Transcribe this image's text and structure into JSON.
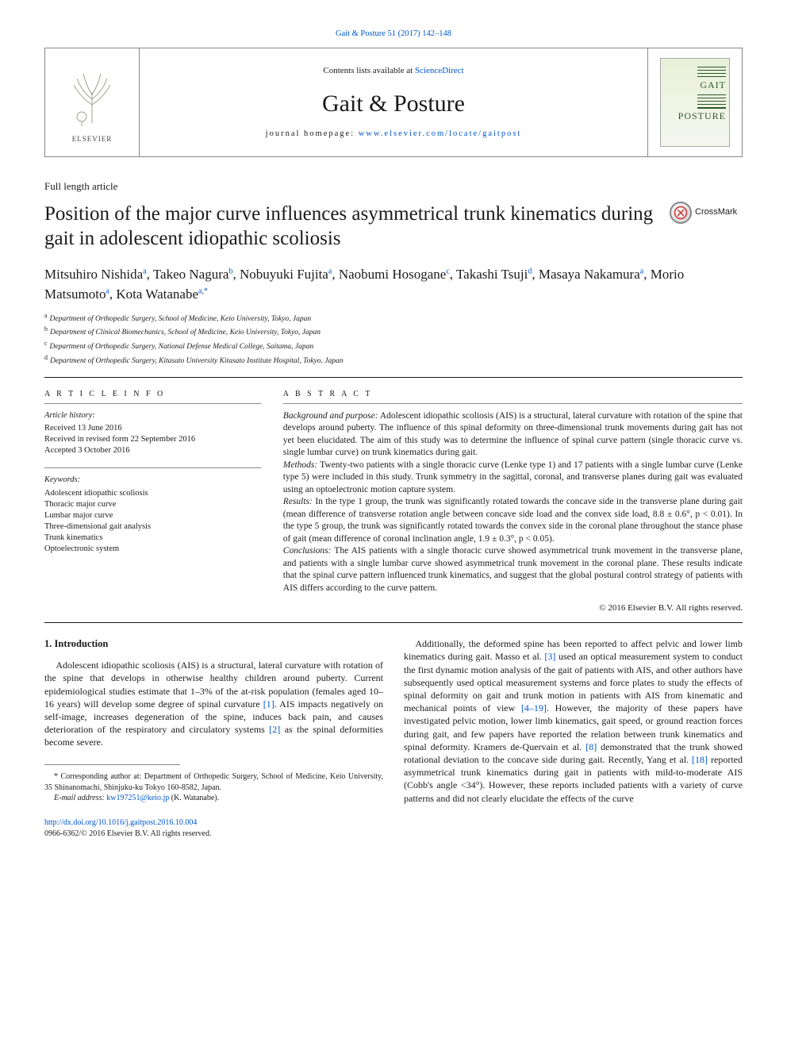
{
  "top_citation_prefix": "",
  "top_citation": "Gait & Posture 51 (2017) 142–148",
  "masthead": {
    "contents_prefix": "Contents lists available at ",
    "contents_link": "ScienceDirect",
    "journal": "Gait & Posture",
    "homepage_prefix": "journal homepage: ",
    "homepage_link": "www.elsevier.com/locate/gaitpost",
    "publisher_label": "ELSEVIER",
    "cover_word_top": "GAIT",
    "cover_word_bot": "POSTURE"
  },
  "article_type": "Full length article",
  "title": "Position of the major curve influences asymmetrical trunk kinematics during gait in adolescent idiopathic scoliosis",
  "crossmark_label": "CrossMark",
  "authors_html": [
    {
      "name": "Mitsuhiro Nishida",
      "sup": "a"
    },
    {
      "name": "Takeo Nagura",
      "sup": "b"
    },
    {
      "name": "Nobuyuki Fujita",
      "sup": "a"
    },
    {
      "name": "Naobumi Hosogane",
      "sup": "c"
    },
    {
      "name": "Takashi Tsuji",
      "sup": "d"
    },
    {
      "name": "Masaya Nakamura",
      "sup": "a"
    },
    {
      "name": "Morio Matsumoto",
      "sup": "a"
    },
    {
      "name": "Kota Watanabe",
      "sup": "a,*"
    }
  ],
  "affiliations": [
    {
      "key": "a",
      "text": "Department of Orthopedic Surgery, School of Medicine, Keio University, Tokyo, Japan"
    },
    {
      "key": "b",
      "text": "Department of Clinical Biomechanics, School of Medicine, Keio University, Tokyo, Japan"
    },
    {
      "key": "c",
      "text": "Department of Orthopedic Surgery, National Defense Medical College, Saitama, Japan"
    },
    {
      "key": "d",
      "text": "Department of Orthopedic Surgery, Kitasato University Kitasato Institute Hospital, Tokyo, Japan"
    }
  ],
  "info": {
    "heading": "A R T I C L E   I N F O",
    "history_label": "Article history:",
    "history": [
      "Received 13 June 2016",
      "Received in revised form 22 September 2016",
      "Accepted 3 October 2016"
    ],
    "keywords_label": "Keywords:",
    "keywords": [
      "Adolescent idiopathic scoliosis",
      "Thoracic major curve",
      "Lumbar major curve",
      "Three-dimensional gait analysis",
      "Trunk kinematics",
      "Optoelectronic system"
    ]
  },
  "abstract": {
    "heading": "A B S T R A C T",
    "segments": [
      {
        "label": "Background and purpose:",
        "text": " Adolescent idiopathic scoliosis (AIS) is a structural, lateral curvature with rotation of the spine that develops around puberty. The influence of this spinal deformity on three-dimensional trunk movements during gait has not yet been elucidated. The aim of this study was to determine the influence of spinal curve pattern (single thoracic curve vs. single lumbar curve) on trunk kinematics during gait."
      },
      {
        "label": "Methods:",
        "text": " Twenty-two patients with a single thoracic curve (Lenke type 1) and 17 patients with a single lumbar curve (Lenke type 5) were included in this study. Trunk symmetry in the sagittal, coronal, and transverse planes during gait was evaluated using an optoelectronic motion capture system."
      },
      {
        "label": "Results:",
        "text": " In the type 1 group, the trunk was significantly rotated towards the concave side in the transverse plane during gait (mean difference of transverse rotation angle between concave side load and the convex side load, 8.8 ± 0.6°, p < 0.01). In the type 5 group, the trunk was significantly rotated towards the convex side in the coronal plane throughout the stance phase of gait (mean difference of coronal inclination angle, 1.9 ± 0.3°, p < 0.05)."
      },
      {
        "label": "Conclusions:",
        "text": " The AIS patients with a single thoracic curve showed asymmetrical trunk movement in the transverse plane, and patients with a single lumbar curve showed asymmetrical trunk movement in the coronal plane. These results indicate that the spinal curve pattern influenced trunk kinematics, and suggest that the global postural control strategy of patients with AIS differs according to the curve pattern."
      }
    ],
    "copyright": "© 2016 Elsevier B.V. All rights reserved."
  },
  "body": {
    "section_heading": "1. Introduction",
    "p1_a": "Adolescent idiopathic scoliosis (AIS) is a structural, lateral curvature with rotation of the spine that develops in otherwise healthy children around puberty. Current epidemiological studies estimate that 1–3% of the at-risk population (females aged 10–16 years) will develop some degree of spinal curvature ",
    "p1_ref1": "[1]",
    "p1_b": ". AIS impacts negatively on self-image, increases degeneration of the spine, induces back pain, and causes deterioration of the respiratory and circulatory systems ",
    "p1_ref2": "[2]",
    "p1_c": " as the spinal deformities become severe.",
    "p2_a": "Additionally, the deformed spine has been reported to affect pelvic and lower limb kinematics during gait. Masso et al. ",
    "p2_ref3": "[3]",
    "p2_b": " used an optical measurement system to conduct the first dynamic motion analysis of the gait of patients with AIS, and other authors have subsequently used optical measurement systems and force plates to study the effects of spinal deformity on gait and trunk motion in patients with AIS from kinematic and mechanical points of view ",
    "p2_ref419": "[4–19]",
    "p2_c": ". However, the majority of these papers have investigated pelvic motion, lower limb kinematics, gait speed, or ground reaction forces during gait, and few papers have reported the relation between trunk kinematics and spinal deformity. Kramers de-Quervain et al. ",
    "p2_ref8": "[8]",
    "p2_d": " demonstrated that the trunk showed rotational deviation to the concave side during gait. Recently, Yang et al. ",
    "p2_ref18": "[18]",
    "p2_e": " reported asymmetrical trunk kinematics during gait in patients with mild-to-moderate AIS (Cobb's angle <34°). However, these reports included patients with a variety of curve patterns and did not clearly elucidate the effects of the curve"
  },
  "footnote": {
    "corr": "* Corresponding author at: Department of Orthopedic Surgery, School of Medicine, Keio University, 35 Shinanomachi, Shinjuku-ku Tokyo 160-8582, Japan.",
    "email_label": "E-mail address: ",
    "email": "kw197251@keio.jp",
    "email_tail": " (K. Watanabe)."
  },
  "footer": {
    "doi": "http://dx.doi.org/10.1016/j.gaitpost.2016.10.004",
    "issn_line": "0966-6362/© 2016 Elsevier B.V. All rights reserved."
  },
  "colors": {
    "link": "#0055cc",
    "rule": "#1a1a1a",
    "rule_thin": "#888888",
    "text": "#1a1a1a",
    "cover_green": "#2a5a2a"
  }
}
